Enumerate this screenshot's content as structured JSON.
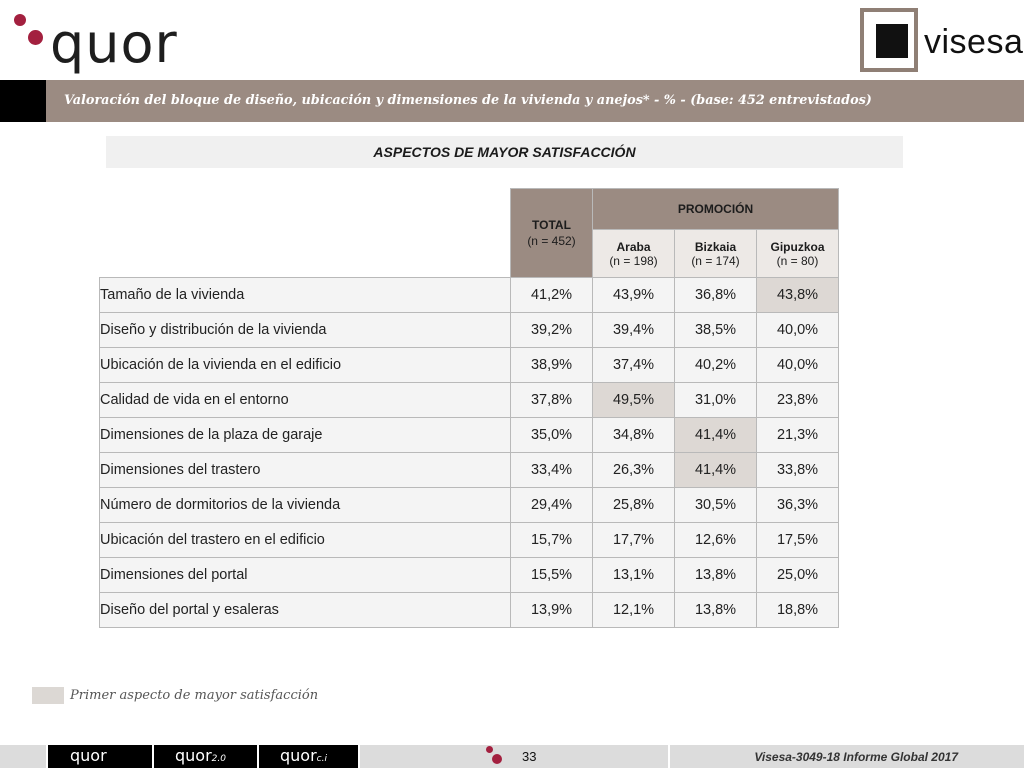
{
  "header": {
    "quor_logo": "quor",
    "visesa_logo": "visesa",
    "title": "Valoración del bloque de diseño, ubicación y dimensiones de la vivienda y anejos* - % - (base: 452 entrevistados)"
  },
  "section_title": "ASPECTOS DE MAYOR SATISFACCIÓN",
  "table": {
    "total_header": "TOTAL",
    "total_n": "(n = 452)",
    "group_header": "PROMOCIÓN",
    "sub_headers": [
      {
        "name": "Araba",
        "n": "(n = 198)"
      },
      {
        "name": "Bizkaia",
        "n": "(n = 174)"
      },
      {
        "name": "Gipuzkoa",
        "n": "(n = 80)"
      }
    ],
    "rows": [
      {
        "label": "Tamaño de la vivienda",
        "values": [
          "41,2%",
          "43,9%",
          "36,8%",
          "43,8%"
        ]
      },
      {
        "label": "Diseño y distribución de la vivienda",
        "values": [
          "39,2%",
          "39,4%",
          "38,5%",
          "40,0%"
        ]
      },
      {
        "label": "Ubicación de la vivienda en el edificio",
        "values": [
          "38,9%",
          "37,4%",
          "40,2%",
          "40,0%"
        ]
      },
      {
        "label": "Calidad de vida en el entorno",
        "values": [
          "37,8%",
          "49,5%",
          "31,0%",
          "23,8%"
        ]
      },
      {
        "label": "Dimensiones de la plaza de garaje",
        "values": [
          "35,0%",
          "34,8%",
          "41,4%",
          "21,3%"
        ]
      },
      {
        "label": "Dimensiones del trastero",
        "values": [
          "33,4%",
          "26,3%",
          "41,4%",
          "33,8%"
        ]
      },
      {
        "label": "Número de dormitorios de la vivienda",
        "values": [
          "29,4%",
          "25,8%",
          "30,5%",
          "36,3%"
        ]
      },
      {
        "label": "Ubicación del trastero en el edificio",
        "values": [
          "15,7%",
          "17,7%",
          "12,6%",
          "17,5%"
        ]
      },
      {
        "label": "Dimensiones del portal",
        "values": [
          "15,5%",
          "13,1%",
          "13,8%",
          "25,0%"
        ]
      },
      {
        "label": "Diseño del portal y esaleras",
        "values": [
          "13,9%",
          "12,1%",
          "13,8%",
          "18,8%"
        ]
      }
    ],
    "highlight_color": "#ddd8d4"
  },
  "legend": {
    "text": "Primer aspecto de mayor satisfacción"
  },
  "footer": {
    "brands": [
      "quor",
      "quor",
      "quor"
    ],
    "brand_suffixes": [
      "",
      "2.0",
      "c.i"
    ],
    "page_number": "33",
    "info": "Visesa-3049-18  Informe Global 2017"
  },
  "colors": {
    "accent_brown": "#9b8b82",
    "brand_red": "#a3203f"
  }
}
